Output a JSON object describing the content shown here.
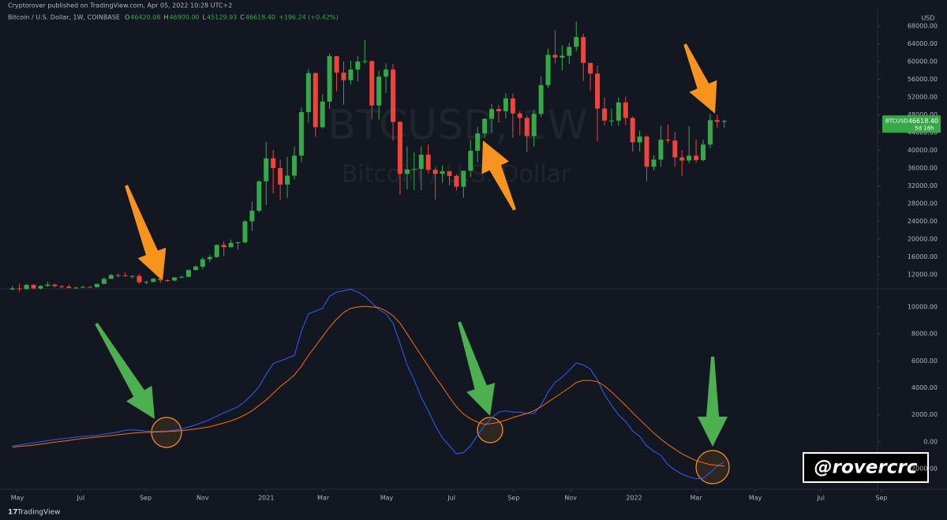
{
  "header": {
    "published": "Cryptorover published on TradingView.com, Apr 05, 2022 10:28 UTC+2",
    "footer": "TradingView",
    "signature": "@rovercrc"
  },
  "chart_data": [
    {
      "type": "candlestick",
      "title": "Bitcoin / U.S. Dollar, 1W, COINBASE",
      "legend": [
        [
          "O",
          "46420.08"
        ],
        [
          "H",
          "46900.00"
        ],
        [
          "L",
          "45129.93"
        ],
        [
          "C",
          "46618.40"
        ]
      ],
      "change": "+196.24 (+0.42%)",
      "watermark": [
        "BTCUSD, 1W",
        "Bitcoin / U.S. Dollar"
      ],
      "currency": "USD",
      "last_price": {
        "symbol": "BTCUSD",
        "value": "46618.40",
        "countdown": "5d 16h"
      },
      "up_color": "#35a947",
      "down_color": "#f0433a",
      "open": [
        8620,
        8890,
        8720,
        9680,
        8900,
        9450,
        9750,
        9390,
        9300,
        9010,
        9070,
        9240,
        9160,
        9900,
        11050,
        11900,
        11800,
        11650,
        11700,
        10280,
        10330,
        11080,
        10730,
        10670,
        11380,
        11500,
        13030,
        13800,
        15480,
        15960,
        18680,
        18180,
        19150,
        19270,
        24000,
        26400,
        33000,
        38200,
        36000,
        32280,
        34300,
        38800,
        48600,
        57400,
        45200,
        50970,
        61200,
        57500,
        55800,
        58200,
        60000,
        60100,
        50100,
        56600,
        58200,
        46400,
        34700,
        35700,
        35800,
        39000,
        35600,
        34700,
        35300,
        34250,
        31800,
        35400,
        39900,
        43800,
        47100,
        49300,
        48800,
        51700,
        48300,
        47300,
        43200,
        48200,
        54700,
        61500,
        60900,
        61300,
        63300,
        65500,
        59700,
        57300,
        49400,
        46700,
        46700,
        50800,
        47300,
        41800,
        43100,
        36300,
        37900,
        42400,
        42200,
        38400,
        37700,
        38800,
        37800,
        41300,
        46800,
        46420.08
      ],
      "high": [
        9480,
        10000,
        9900,
        9850,
        9600,
        10390,
        9990,
        9590,
        9780,
        9280,
        9470,
        9350,
        9980,
        11400,
        12100,
        12200,
        12480,
        11800,
        12100,
        10600,
        11200,
        11180,
        10950,
        11450,
        11720,
        13200,
        14100,
        15970,
        16480,
        18800,
        19480,
        19900,
        19420,
        24300,
        28400,
        33300,
        41900,
        40100,
        37900,
        38500,
        40900,
        49700,
        58300,
        57500,
        52600,
        61800,
        61200,
        60000,
        60200,
        61300,
        64900,
        60200,
        57900,
        59600,
        59500,
        46600,
        40900,
        39500,
        40900,
        41300,
        36100,
        36600,
        35000,
        34600,
        35400,
        42300,
        45300,
        47200,
        50500,
        50200,
        52900,
        52800,
        48800,
        47800,
        49000,
        56600,
        62900,
        67000,
        63700,
        64200,
        69000,
        66300,
        59400,
        59100,
        51900,
        49400,
        51900,
        52100,
        47600,
        44400,
        43400,
        38900,
        45500,
        45800,
        44200,
        40000,
        45400,
        42400,
        42400,
        48200,
        48000,
        46900
      ],
      "low": [
        8580,
        8120,
        8650,
        8700,
        8640,
        9250,
        9120,
        8930,
        8840,
        8930,
        9050,
        9050,
        9100,
        9850,
        11000,
        11300,
        11550,
        11100,
        9900,
        9900,
        10300,
        10150,
        10420,
        10550,
        11200,
        11420,
        12950,
        13200,
        14800,
        15800,
        16200,
        18100,
        17600,
        19000,
        21900,
        26000,
        27700,
        30300,
        28800,
        29300,
        33400,
        37300,
        46300,
        43000,
        44900,
        49300,
        53300,
        50300,
        54800,
        55500,
        59500,
        47000,
        46900,
        52900,
        42200,
        30000,
        31200,
        31100,
        31000,
        34800,
        28900,
        32700,
        32100,
        31000,
        29300,
        34000,
        37300,
        42800,
        43900,
        46300,
        47200,
        42800,
        43400,
        39600,
        40800,
        47500,
        54100,
        59600,
        58000,
        59500,
        62300,
        55600,
        53500,
        42000,
        45600,
        45500,
        45600,
        45700,
        39700,
        39800,
        33000,
        35500,
        36300,
        41600,
        36300,
        34300,
        37100,
        37200,
        37500,
        40500,
        45100,
        45129.93
      ],
      "close": [
        8890,
        8720,
        9680,
        8900,
        9450,
        9750,
        9390,
        9300,
        9010,
        9070,
        9240,
        9160,
        9900,
        11050,
        11900,
        11800,
        11650,
        11700,
        10280,
        10330,
        11080,
        10730,
        10670,
        11380,
        11500,
        13030,
        13800,
        15480,
        15960,
        18680,
        18180,
        19150,
        19270,
        24000,
        26400,
        33000,
        38200,
        36000,
        32280,
        34300,
        38800,
        48600,
        57400,
        45200,
        50970,
        61200,
        57500,
        55800,
        58200,
        60000,
        60100,
        50100,
        56600,
        58200,
        46400,
        34700,
        35700,
        35800,
        39000,
        35600,
        34700,
        35300,
        34250,
        31800,
        35400,
        39900,
        43800,
        47100,
        49300,
        48800,
        51700,
        48300,
        47300,
        43200,
        48200,
        54700,
        61500,
        60900,
        61300,
        63300,
        65500,
        59700,
        57300,
        49400,
        46700,
        46700,
        50800,
        47300,
        41800,
        43100,
        36300,
        37900,
        42400,
        42200,
        38400,
        37700,
        38800,
        37800,
        41300,
        46800,
        46420.08,
        46618.4
      ],
      "xlim": [
        -1.2,
        124.2
      ],
      "xticks": [
        {
          "value": 0.7,
          "label": "May"
        },
        {
          "value": 9.7,
          "label": "Jul"
        },
        {
          "value": 18.9,
          "label": "Sep"
        },
        {
          "value": 27,
          "label": "Nov"
        },
        {
          "value": 36,
          "label": "2021"
        },
        {
          "value": 44.1,
          "label": "Mar"
        },
        {
          "value": 53.1,
          "label": "May"
        },
        {
          "value": 62.3,
          "label": "Jul"
        },
        {
          "value": 71.1,
          "label": "Sep"
        },
        {
          "value": 79.2,
          "label": "Nov"
        },
        {
          "value": 88.2,
          "label": "2022"
        },
        {
          "value": 97,
          "label": "Mar"
        },
        {
          "value": 105.4,
          "label": "May"
        },
        {
          "value": 114.7,
          "label": "Jul"
        },
        {
          "value": 123.3,
          "label": "Sep"
        }
      ],
      "ylim": [
        8980,
        71730
      ],
      "yticks": [
        {
          "value": 12000,
          "label": "12000.00"
        },
        {
          "value": 16000,
          "label": "16000.00"
        },
        {
          "value": 20000,
          "label": "20000.00"
        },
        {
          "value": 24000,
          "label": "24000.00"
        },
        {
          "value": 28000,
          "label": "28000.00"
        },
        {
          "value": 32000,
          "label": "32000.00"
        },
        {
          "value": 36000,
          "label": "36000.00"
        },
        {
          "value": 40000,
          "label": "40000.00"
        },
        {
          "value": 44000,
          "label": "44000.00"
        },
        {
          "value": 48000,
          "label": "48000.00"
        },
        {
          "value": 52000,
          "label": "52000.00"
        },
        {
          "value": 56000,
          "label": "56000.00"
        },
        {
          "value": 60000,
          "label": "60000.00"
        },
        {
          "value": 64000,
          "label": "64000.00"
        },
        {
          "value": 68000,
          "label": "68000.00"
        }
      ]
    },
    {
      "type": "line",
      "series": [
        {
          "color": "#2962ff",
          "values": [
            -300,
            -250,
            -150,
            -80,
            0,
            80,
            150,
            220,
            280,
            350,
            400,
            430,
            480,
            560,
            650,
            720,
            850,
            880,
            850,
            780,
            760,
            780,
            800,
            850,
            950,
            1100,
            1250,
            1450,
            1650,
            1900,
            2150,
            2350,
            2600,
            3000,
            3500,
            4100,
            5000,
            5800,
            6000,
            6200,
            6400,
            8200,
            9500,
            9700,
            9900,
            10800,
            11100,
            11200,
            11300,
            11100,
            10800,
            10300,
            9800,
            9500,
            8800,
            7300,
            5700,
            4600,
            3300,
            2300,
            1200,
            300,
            -300,
            -900,
            -800,
            -300,
            500,
            1200,
            1800,
            2200,
            2300,
            2200,
            2200,
            2100,
            2100,
            2700,
            3700,
            4400,
            4800,
            5300,
            5850,
            5700,
            5400,
            4600,
            3500,
            2700,
            2000,
            1500,
            800,
            400,
            -300,
            -700,
            -1000,
            -1700,
            -2100,
            -2400,
            -2600,
            -2750,
            -2700,
            -2300,
            -1800,
            -1500
          ]
        },
        {
          "color": "#ff6d00",
          "values": [
            -400,
            -350,
            -300,
            -250,
            -180,
            -100,
            -30,
            40,
            100,
            180,
            250,
            300,
            350,
            400,
            460,
            520,
            580,
            640,
            680,
            700,
            720,
            740,
            760,
            790,
            830,
            880,
            950,
            1030,
            1120,
            1250,
            1400,
            1550,
            1750,
            2000,
            2300,
            2700,
            3100,
            3600,
            4100,
            4500,
            4950,
            5600,
            6400,
            7100,
            7800,
            8500,
            9100,
            9600,
            9900,
            10000,
            10050,
            10000,
            9950,
            9700,
            9350,
            8800,
            8000,
            7200,
            6400,
            5600,
            4800,
            4100,
            3300,
            2600,
            2050,
            1700,
            1450,
            1300,
            1350,
            1450,
            1600,
            1800,
            1950,
            2100,
            2300,
            2600,
            2950,
            3300,
            3650,
            4000,
            4400,
            4550,
            4550,
            4450,
            4150,
            3700,
            3200,
            2700,
            2150,
            1650,
            1150,
            650,
            200,
            -200,
            -550,
            -900,
            -1150,
            -1400,
            -1550,
            -1700,
            -1750,
            -1800
          ]
        }
      ],
      "ylim": [
        -3520,
        11290
      ],
      "yticks": [
        {
          "value": -2000,
          "label": "-2000.00"
        },
        {
          "value": 0,
          "label": "0.00"
        },
        {
          "value": 2000,
          "label": "2000.00"
        },
        {
          "value": 4000,
          "label": "4000.00"
        },
        {
          "value": 6000,
          "label": "6000.00"
        },
        {
          "value": 8000,
          "label": "8000.00"
        },
        {
          "value": 10000,
          "label": "10000.00"
        }
      ]
    }
  ]
}
